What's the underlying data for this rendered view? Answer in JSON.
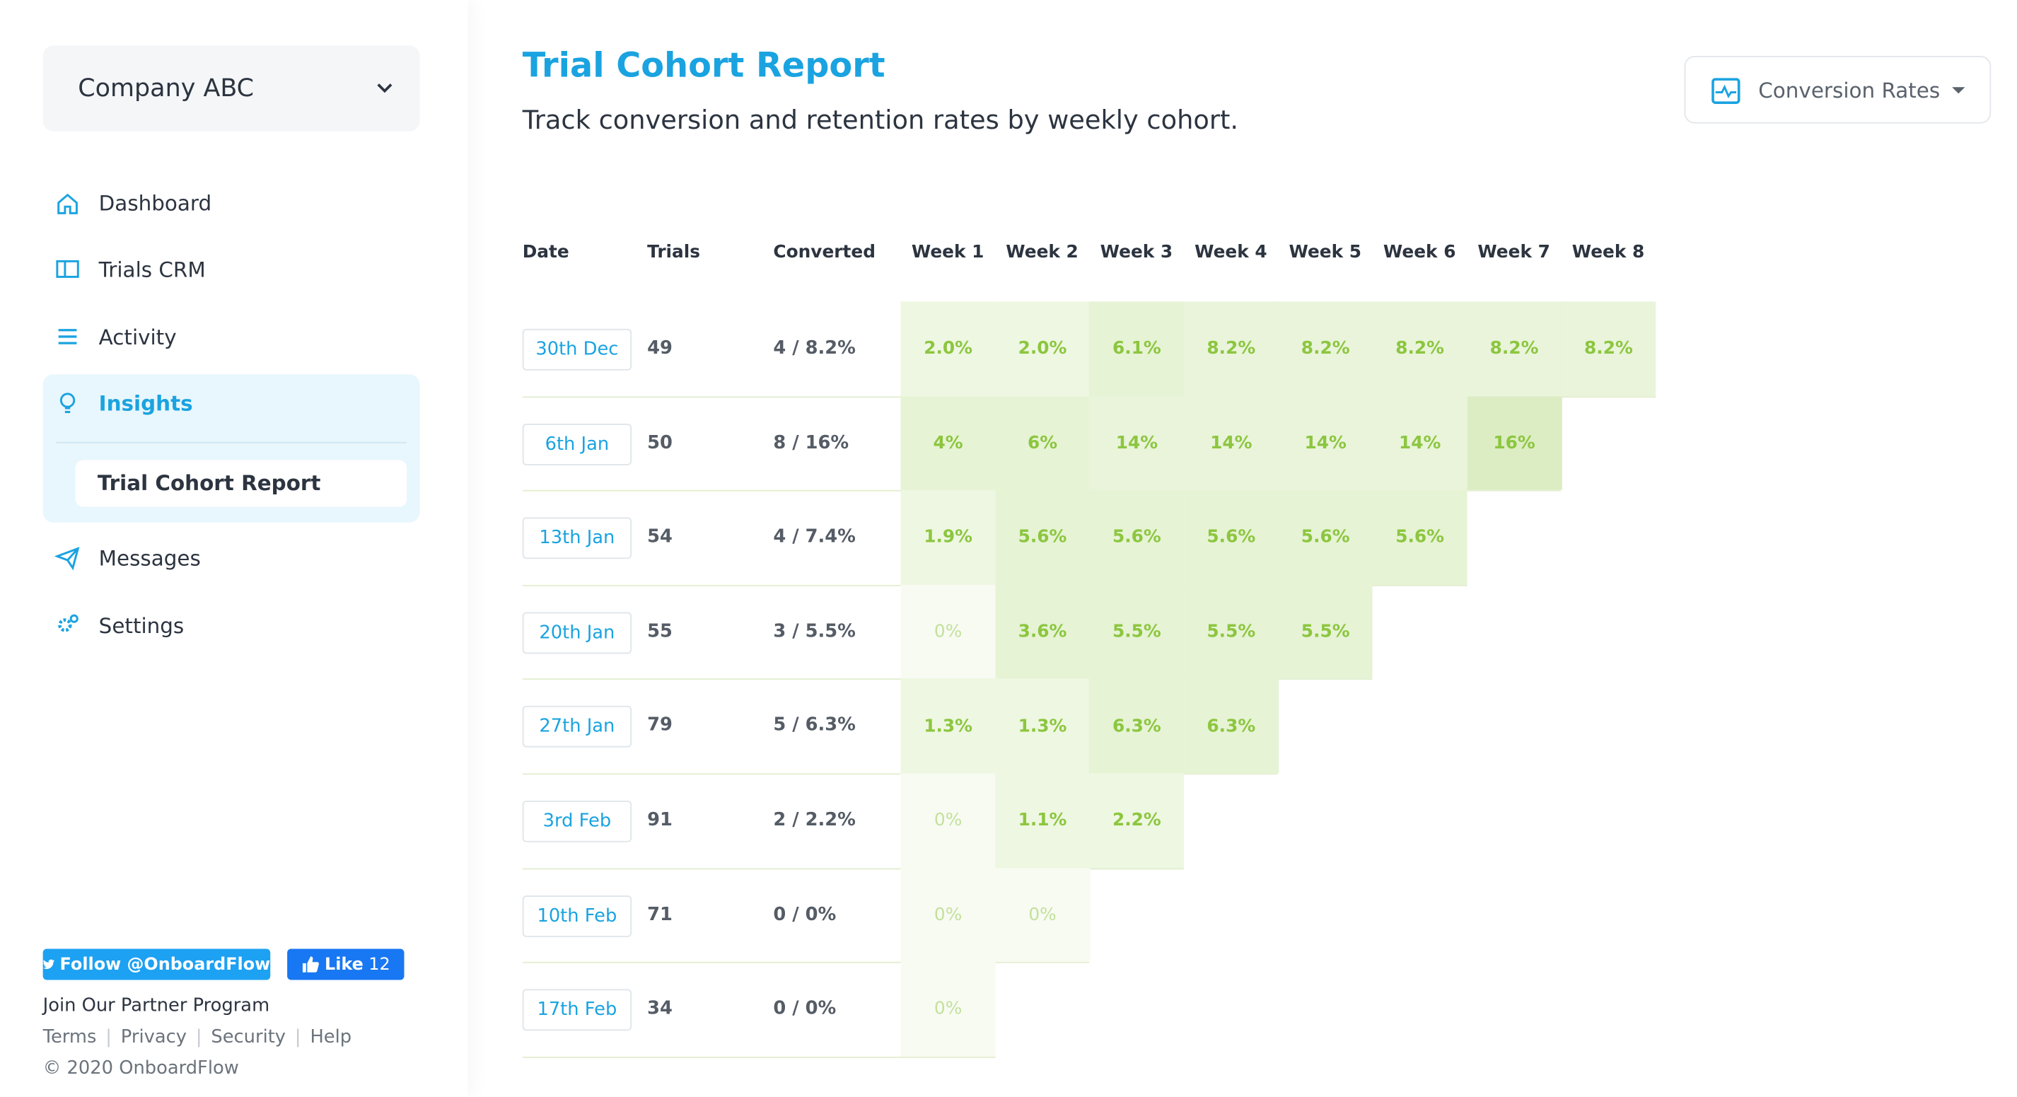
{
  "sidebar": {
    "company": "Company ABC",
    "nav": [
      "Dashboard",
      "Trials CRM",
      "Activity",
      "Insights",
      "Messages",
      "Settings"
    ],
    "subnav": "Trial Cohort Report",
    "twitter": "Follow @OnboardFlow",
    "like": "Like",
    "like_count": "12",
    "partner": "Join Our Partner Program",
    "links": [
      "Terms",
      "Privacy",
      "Security",
      "Help"
    ],
    "copyright": "© 2020 OnboardFlow"
  },
  "header": {
    "title": "Trial Cohort Report",
    "subtitle": "Track conversion and retention rates by weekly cohort.",
    "dropdown": "Conversion Rates"
  },
  "table": {
    "columns": [
      "Date",
      "Trials",
      "Converted",
      "Week 1",
      "Week 2",
      "Week 3",
      "Week 4",
      "Week 5",
      "Week 6",
      "Week 7",
      "Week 8"
    ],
    "rows": [
      [
        "30th Dec",
        "49",
        "4 / 8.2%",
        "2.0%",
        "2.0%",
        "6.1%",
        "8.2%",
        "8.2%",
        "8.2%",
        "8.2%",
        "8.2%"
      ],
      [
        "6th Jan",
        "50",
        "8 / 16%",
        "4%",
        "6%",
        "14%",
        "14%",
        "14%",
        "14%",
        "16%"
      ],
      [
        "13th Jan",
        "54",
        "4 / 7.4%",
        "1.9%",
        "5.6%",
        "5.6%",
        "5.6%",
        "5.6%",
        "5.6%"
      ],
      [
        "20th Jan",
        "55",
        "3 / 5.5%",
        "0%",
        "3.6%",
        "5.5%",
        "5.5%",
        "5.5%"
      ],
      [
        "27th Jan",
        "79",
        "5 / 6.3%",
        "1.3%",
        "1.3%",
        "6.3%",
        "6.3%"
      ],
      [
        "3rd Feb",
        "91",
        "2 / 2.2%",
        "0%",
        "1.1%",
        "2.2%"
      ],
      [
        "10th Feb",
        "71",
        "0 / 0%",
        "0%",
        "0%"
      ],
      [
        "17th Feb",
        "34",
        "0 / 0%",
        "0%"
      ]
    ]
  }
}
